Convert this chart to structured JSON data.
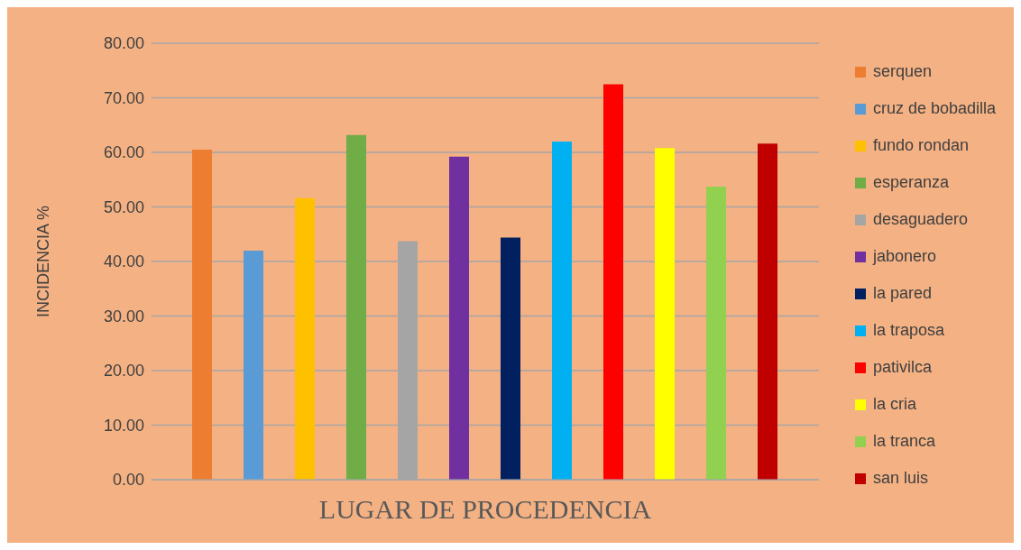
{
  "chart_data": {
    "type": "bar",
    "xlabel": "LUGAR DE PROCEDENCIA",
    "ylabel": "INCIDENCIA %",
    "categories": [
      null
    ],
    "series": [
      {
        "name": "serquen",
        "color": "#ed7d31",
        "values": [
          60.5
        ]
      },
      {
        "name": "cruz de bobadilla",
        "color": "#5b9bd5",
        "values": [
          42.0
        ]
      },
      {
        "name": "fundo rondan",
        "color": "#ffc000",
        "values": [
          51.6
        ]
      },
      {
        "name": "esperanza",
        "color": "#70ad47",
        "values": [
          63.2
        ]
      },
      {
        "name": "desaguadero",
        "color": "#a5a5a5",
        "values": [
          43.7
        ]
      },
      {
        "name": "jabonero",
        "color": "#7030a0",
        "values": [
          59.2
        ]
      },
      {
        "name": "la pared",
        "color": "#002060",
        "values": [
          44.4
        ]
      },
      {
        "name": "la traposa",
        "color": "#00b0f0",
        "values": [
          62.0
        ]
      },
      {
        "name": "pativilca",
        "color": "#ff0000",
        "values": [
          72.5
        ]
      },
      {
        "name": "la cria",
        "color": "#ffff00",
        "values": [
          60.8
        ]
      },
      {
        "name": "la tranca",
        "color": "#92d050",
        "values": [
          53.7
        ]
      },
      {
        "name": "san luis",
        "color": "#c00000",
        "values": [
          61.6
        ]
      }
    ],
    "ylim": [
      0,
      80
    ],
    "yticks": [
      {
        "value": 0,
        "label": "0.00"
      },
      {
        "value": 10,
        "label": "10.00"
      },
      {
        "value": 20,
        "label": "20.00"
      },
      {
        "value": 30,
        "label": "30.00"
      },
      {
        "value": 40,
        "label": "40.00"
      },
      {
        "value": 50,
        "label": "50.00"
      },
      {
        "value": 60,
        "label": "60.00"
      },
      {
        "value": 70,
        "label": "70.00"
      },
      {
        "value": 80,
        "label": "80.00"
      }
    ],
    "grid": "y",
    "legend": "right"
  }
}
